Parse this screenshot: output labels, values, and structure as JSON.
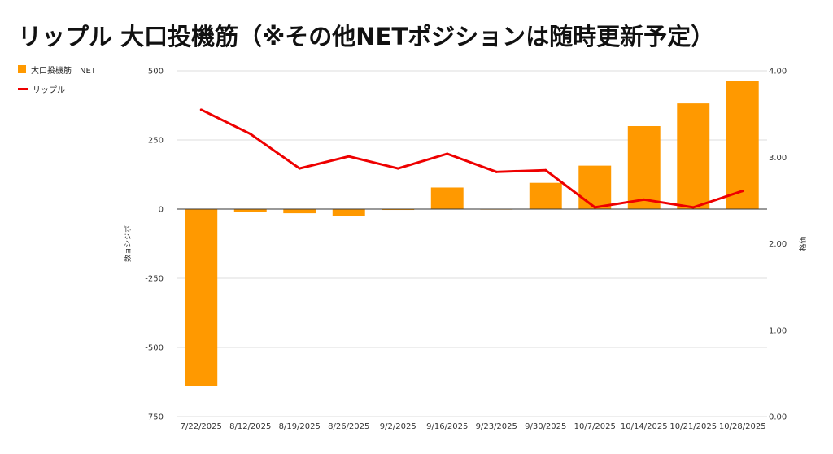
{
  "title": "リップル 大口投機筋（※その他NETポジションは随時更新予定）",
  "colors": {
    "bar": "#ff9900",
    "line": "#ee0000",
    "grid": "#dddddd",
    "zero": "#333333"
  },
  "chart_data": {
    "type": "bar+line",
    "categories": [
      "7/22/2025",
      "8/12/2025",
      "8/19/2025",
      "8/26/2025",
      "9/2/2025",
      "9/16/2025",
      "9/23/2025",
      "9/30/2025",
      "10/7/2025",
      "10/14/2025",
      "10/21/2025",
      "10/28/2025"
    ],
    "series": [
      {
        "name": "大口投機筋　NET",
        "type": "bar",
        "axis": "left",
        "values": [
          -640,
          -10,
          -15,
          -25,
          -3,
          78,
          1,
          95,
          157,
          300,
          382,
          463
        ]
      },
      {
        "name": "リップル",
        "type": "line",
        "axis": "right",
        "values": [
          3.55,
          3.27,
          2.87,
          3.01,
          2.87,
          3.04,
          2.83,
          2.85,
          2.42,
          2.51,
          2.42,
          2.61
        ]
      }
    ],
    "y_left": {
      "label": "数ョシジポ",
      "min": -750,
      "max": 500,
      "ticks": [
        500,
        250,
        0,
        -250,
        -500,
        -750
      ],
      "tick_labels": [
        "500",
        "250",
        "0",
        "-250",
        "-500",
        "-750"
      ]
    },
    "y_right": {
      "label": "格価",
      "min": 0,
      "max": 4,
      "ticks": [
        4,
        3,
        2,
        1,
        0
      ],
      "tick_labels": [
        "4.00",
        "3.00",
        "2.00",
        "1.00",
        "0.00"
      ]
    },
    "legend_position": "top-left"
  }
}
